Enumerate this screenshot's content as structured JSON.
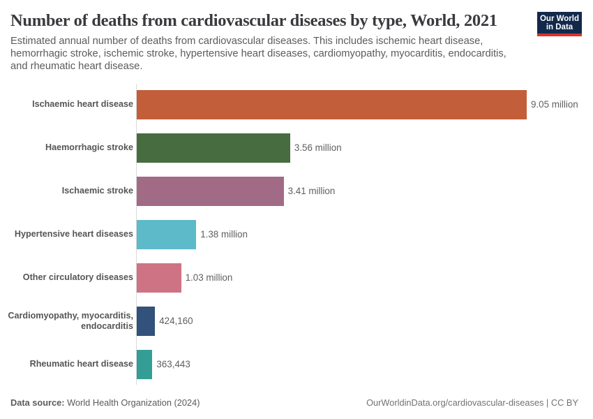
{
  "header": {
    "title": "Number of deaths from cardiovascular diseases by type, World, 2021",
    "subtitle_lines": [
      "Estimated annual number of deaths from cardiovascular diseases. This includes ischemic heart disease,",
      "hemorrhagic stroke, ischemic stroke, hypertensive heart diseases, cardiomyopathy, myocarditis, endocarditis,",
      "and rheumatic heart disease."
    ],
    "logo": {
      "line1": "Our World",
      "line2": "in Data",
      "bg_color": "#12294b",
      "underline_color": "#d7332e"
    }
  },
  "chart_data": {
    "type": "bar",
    "orientation": "horizontal",
    "title": "Number of deaths from cardiovascular diseases by type, World, 2021",
    "unit": "deaths",
    "xlim": [
      0,
      9050000
    ],
    "grid": false,
    "legend": false,
    "bars": [
      {
        "category": "Ischaemic heart disease",
        "value": 9050000,
        "label": "9.05 million",
        "color": "#c25e39"
      },
      {
        "category": "Haemorrhagic stroke",
        "value": 3560000,
        "label": "3.56 million",
        "color": "#466c40"
      },
      {
        "category": "Ischaemic stroke",
        "value": 3410000,
        "label": "3.41 million",
        "color": "#a26b85"
      },
      {
        "category": "Hypertensive heart diseases",
        "value": 1380000,
        "label": "1.38 million",
        "color": "#5cbac9"
      },
      {
        "category": "Other circulatory diseases",
        "value": 1030000,
        "label": "1.03 million",
        "color": "#ce7383"
      },
      {
        "category": "Cardiomyopathy, myocarditis,\nendocarditis",
        "value": 424160,
        "label": "424,160",
        "color": "#32517b"
      },
      {
        "category": "Rheumatic heart disease",
        "value": 363443,
        "label": "363,443",
        "color": "#339d96"
      }
    ]
  },
  "footer": {
    "source_label": "Data source:",
    "source_text": " World Health Organization (2024)",
    "right_text": "OurWorldinData.org/cardiovascular-diseases | CC BY"
  }
}
